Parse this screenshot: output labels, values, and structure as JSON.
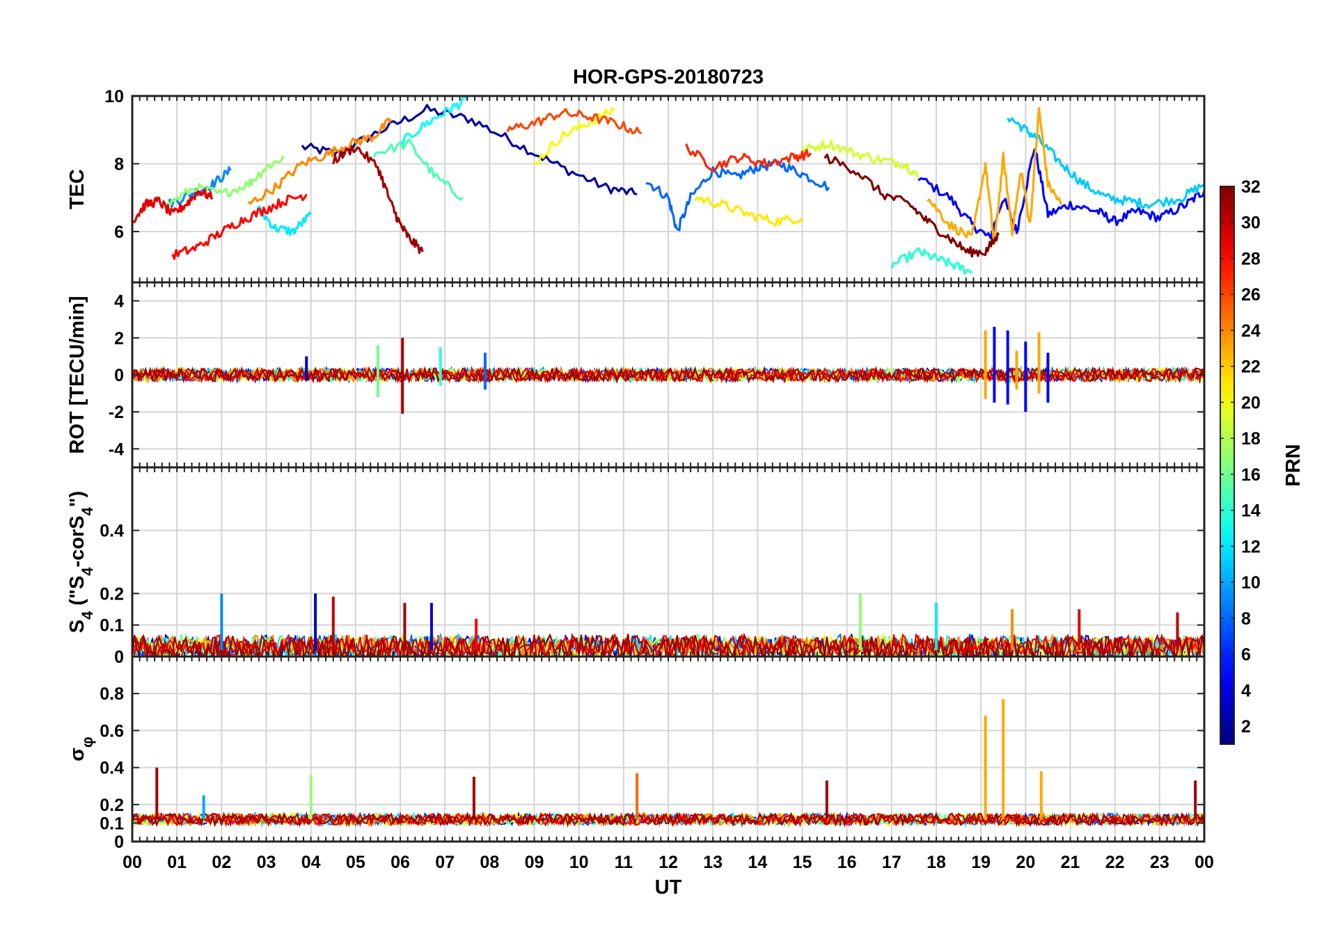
{
  "chart_data": {
    "type": "line",
    "title": "HOR-GPS-20180723",
    "xlabel": "UT",
    "x_ticks": [
      "00",
      "01",
      "02",
      "03",
      "04",
      "05",
      "06",
      "07",
      "08",
      "09",
      "10",
      "11",
      "12",
      "13",
      "14",
      "15",
      "16",
      "17",
      "18",
      "19",
      "20",
      "21",
      "22",
      "23",
      "00"
    ],
    "xlim": [
      0,
      24
    ],
    "grid": true,
    "colorbar": {
      "label": "PRN",
      "colormap": "jet",
      "range": [
        1,
        32
      ],
      "ticks": [
        "2",
        "4",
        "6",
        "8",
        "10",
        "12",
        "14",
        "16",
        "18",
        "20",
        "22",
        "24",
        "26",
        "28",
        "30",
        "32"
      ],
      "position": "right"
    },
    "panels": [
      {
        "ylabel": "TEC",
        "ylim": [
          4.5,
          10
        ],
        "y_ticks": [
          "6",
          "8",
          "10"
        ],
        "series": [
          {
            "prn": 2,
            "x": [
              3.8,
              4.6,
              5.6,
              6.6,
              7.6,
              8.6,
              9.6,
              10.6,
              11.3
            ],
            "y": [
              8.5,
              8.3,
              9.0,
              9.6,
              9.3,
              8.6,
              7.9,
              7.3,
              7.1
            ]
          },
          {
            "prn": 5,
            "x": [
              17.6,
              18.3,
              18.8,
              19.2,
              19.5,
              19.8,
              20.2,
              20.5,
              21.0,
              21.6,
              22.0,
              22.5,
              23.0,
              23.6,
              24.0
            ],
            "y": [
              7.6,
              7.0,
              6.2,
              5.8,
              7.0,
              6.0,
              8.5,
              6.5,
              6.8,
              6.6,
              6.3,
              6.6,
              6.4,
              6.8,
              7.2
            ]
          },
          {
            "prn": 8,
            "x": [
              11.5,
              12.0,
              12.2,
              12.5,
              13.0,
              13.5,
              14.0,
              14.5,
              15.0,
              15.6
            ],
            "y": [
              7.5,
              7.0,
              6.0,
              7.0,
              7.8,
              7.6,
              7.9,
              8.0,
              7.7,
              7.3
            ]
          },
          {
            "prn": 9,
            "x": [
              0.8,
              1.3,
              1.8,
              2.2
            ],
            "y": [
              6.8,
              7.1,
              7.4,
              7.8
            ]
          },
          {
            "prn": 11,
            "x": [
              19.6,
              20.0,
              20.3,
              20.8,
              21.3,
              21.8,
              22.3,
              22.8,
              23.5,
              24.0
            ],
            "y": [
              9.4,
              9.0,
              8.7,
              8.0,
              7.4,
              7.0,
              6.9,
              6.8,
              7.0,
              7.4
            ]
          },
          {
            "prn": 12,
            "x": [
              2.8,
              3.2,
              3.6,
              4.0
            ],
            "y": [
              6.7,
              6.1,
              6.0,
              6.5
            ]
          },
          {
            "prn": 13,
            "x": [
              6.0,
              6.6,
              7.1,
              7.5
            ],
            "y": [
              8.6,
              9.2,
              9.6,
              9.9
            ]
          },
          {
            "prn": 14,
            "x": [
              17.0,
              17.6,
              18.0,
              18.4,
              18.8
            ],
            "y": [
              5.0,
              5.4,
              5.2,
              5.0,
              4.8
            ]
          },
          {
            "prn": 15,
            "x": [
              5.4,
              6.2,
              6.8,
              7.4
            ],
            "y": [
              8.3,
              8.6,
              7.6,
              7.0
            ]
          },
          {
            "prn": 17,
            "x": [
              0.8,
              1.4,
              2.0,
              2.6,
              3.0,
              3.4
            ],
            "y": [
              6.8,
              7.3,
              7.1,
              7.4,
              7.9,
              8.2
            ]
          },
          {
            "prn": 19,
            "x": [
              15.0,
              15.6,
              16.2,
              16.8,
              17.3,
              17.6
            ],
            "y": [
              8.4,
              8.6,
              8.3,
              8.1,
              8.0,
              7.6
            ]
          },
          {
            "prn": 20,
            "x": [
              9.0,
              9.6,
              10.2,
              10.8
            ],
            "y": [
              8.0,
              8.8,
              9.2,
              9.6
            ]
          },
          {
            "prn": 21,
            "x": [
              12.6,
              13.2,
              13.8,
              14.4,
              15.0
            ],
            "y": [
              7.0,
              6.8,
              6.5,
              6.3,
              6.4
            ]
          },
          {
            "prn": 23,
            "x": [
              17.8,
              18.3,
              18.8,
              19.1,
              19.3,
              19.5,
              19.7,
              19.9,
              20.1,
              20.3,
              20.5,
              20.8
            ],
            "y": [
              7.0,
              6.2,
              5.8,
              8.0,
              5.6,
              8.2,
              6.0,
              7.8,
              6.2,
              9.6,
              7.4,
              6.8
            ]
          },
          {
            "prn": 24,
            "x": [
              2.6,
              3.2,
              3.8,
              4.4,
              4.9,
              5.4,
              5.8
            ],
            "y": [
              6.8,
              7.3,
              8.0,
              8.3,
              8.6,
              8.8,
              9.3
            ]
          },
          {
            "prn": 26,
            "x": [
              8.4,
              9.0,
              9.6,
              10.2,
              10.8,
              11.4
            ],
            "y": [
              9.0,
              9.2,
              9.5,
              9.4,
              9.2,
              8.9
            ]
          },
          {
            "prn": 27,
            "x": [
              12.4,
              13.0,
              13.6,
              14.2,
              14.8,
              15.2
            ],
            "y": [
              8.5,
              7.9,
              8.2,
              8.0,
              8.2,
              8.3
            ]
          },
          {
            "prn": 28,
            "x": [
              0.9,
              1.4,
              1.9,
              2.4,
              2.9,
              3.4,
              3.9
            ],
            "y": [
              5.3,
              5.5,
              5.9,
              6.3,
              6.6,
              6.9,
              7.1
            ]
          },
          {
            "prn": 29,
            "x": [
              0.0,
              0.3,
              0.6,
              0.9,
              1.2,
              1.5,
              1.8
            ],
            "y": [
              6.3,
              6.8,
              6.9,
              6.5,
              6.8,
              7.2,
              7.0
            ]
          },
          {
            "prn": 31,
            "x": [
              4.5,
              5.0,
              5.5,
              5.8,
              6.0,
              6.2,
              6.5
            ],
            "y": [
              8.1,
              8.5,
              7.9,
              6.8,
              6.2,
              5.8,
              5.4
            ]
          },
          {
            "prn": 32,
            "x": [
              15.5,
              16.2,
              16.8,
              17.4,
              17.8,
              18.3,
              18.7,
              19.1,
              19.4
            ],
            "y": [
              8.2,
              7.8,
              7.1,
              6.8,
              6.3,
              5.8,
              5.4,
              5.4,
              5.9
            ]
          }
        ]
      },
      {
        "ylabel": "ROT [TECU/min]",
        "ylim": [
          -5,
          5
        ],
        "y_ticks": [
          "-4",
          "-2",
          "0",
          "2",
          "4"
        ],
        "spikes": [
          {
            "prn": 31,
            "x": 6.05,
            "min": -2.1,
            "max": 2.0
          },
          {
            "prn": 16,
            "x": 5.5,
            "min": -1.2,
            "max": 1.6
          },
          {
            "prn": 14,
            "x": 6.9,
            "min": -0.6,
            "max": 1.5
          },
          {
            "prn": 8,
            "x": 7.9,
            "min": -0.8,
            "max": 1.2
          },
          {
            "prn": 3,
            "x": 3.9,
            "min": -0.3,
            "max": 1.0
          },
          {
            "prn": 23,
            "x": 19.1,
            "min": -1.3,
            "max": 2.4
          },
          {
            "prn": 5,
            "x": 19.3,
            "min": -1.5,
            "max": 2.6
          },
          {
            "prn": 5,
            "x": 19.6,
            "min": -1.6,
            "max": 2.4
          },
          {
            "prn": 23,
            "x": 19.8,
            "min": -0.8,
            "max": 1.3
          },
          {
            "prn": 5,
            "x": 20.0,
            "min": -2.0,
            "max": 1.8
          },
          {
            "prn": 23,
            "x": 20.3,
            "min": -1.0,
            "max": 2.3
          },
          {
            "prn": 5,
            "x": 20.5,
            "min": -1.5,
            "max": 1.2
          }
        ]
      },
      {
        "ylabel": "S_4 (\"S_4-corS_4\")",
        "ylim": [
          0,
          0.6
        ],
        "y_ticks": [
          "0",
          "0.1",
          "0.2",
          "0.4"
        ],
        "spikes": [
          {
            "prn": 9,
            "x": 2.0,
            "max": 0.2
          },
          {
            "prn": 3,
            "x": 4.1,
            "max": 0.2
          },
          {
            "prn": 30,
            "x": 4.5,
            "max": 0.19
          },
          {
            "prn": 31,
            "x": 6.1,
            "max": 0.17
          },
          {
            "prn": 4,
            "x": 6.7,
            "max": 0.17
          },
          {
            "prn": 28,
            "x": 7.7,
            "max": 0.12
          },
          {
            "prn": 17,
            "x": 16.3,
            "max": 0.2
          },
          {
            "prn": 12,
            "x": 18.0,
            "max": 0.17
          },
          {
            "prn": 24,
            "x": 19.7,
            "max": 0.15
          },
          {
            "prn": 29,
            "x": 21.2,
            "max": 0.15
          },
          {
            "prn": 30,
            "x": 23.4,
            "max": 0.14
          }
        ]
      },
      {
        "ylabel": "σ_φ",
        "ylim": [
          0,
          1
        ],
        "y_ticks": [
          "0",
          "0.1",
          "0.2",
          "0.4",
          "0.6",
          "0.8"
        ],
        "spikes": [
          {
            "prn": 31,
            "x": 0.55,
            "max": 0.4
          },
          {
            "prn": 10,
            "x": 1.6,
            "max": 0.25
          },
          {
            "prn": 17,
            "x": 4.0,
            "max": 0.36
          },
          {
            "prn": 31,
            "x": 7.65,
            "max": 0.35
          },
          {
            "prn": 25,
            "x": 11.3,
            "max": 0.37
          },
          {
            "prn": 31,
            "x": 15.55,
            "max": 0.33
          },
          {
            "prn": 23,
            "x": 19.1,
            "max": 0.68
          },
          {
            "prn": 23,
            "x": 19.5,
            "max": 0.77
          },
          {
            "prn": 23,
            "x": 20.35,
            "max": 0.38
          },
          {
            "prn": 31,
            "x": 23.8,
            "max": 0.33
          }
        ]
      }
    ]
  }
}
